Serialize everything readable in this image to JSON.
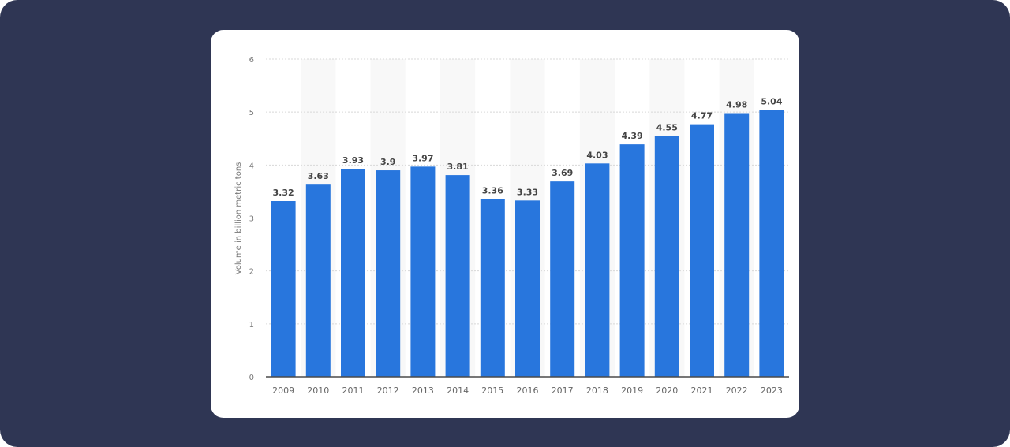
{
  "chart_data": {
    "type": "bar",
    "title": "",
    "xlabel": "",
    "ylabel": "Volume in billion metric tons",
    "ylim": [
      0,
      6
    ],
    "yticks": [
      0,
      1,
      2,
      3,
      4,
      5,
      6
    ],
    "grid": true,
    "categories": [
      "2009",
      "2010",
      "2011",
      "2012",
      "2013",
      "2014",
      "2015",
      "2016",
      "2017",
      "2018",
      "2019",
      "2020",
      "2021",
      "2022",
      "2023"
    ],
    "values": [
      3.32,
      3.63,
      3.93,
      3.9,
      3.97,
      3.81,
      3.36,
      3.33,
      3.69,
      4.03,
      4.39,
      4.55,
      4.77,
      4.98,
      5.04
    ],
    "labels": [
      "3.32",
      "3.63",
      "3.93",
      "3.9",
      "3.97",
      "3.81",
      "3.36",
      "3.33",
      "3.69",
      "4.03",
      "4.39",
      "4.55",
      "4.77",
      "4.98",
      "5.04"
    ],
    "bar_color": "#2876dd"
  }
}
